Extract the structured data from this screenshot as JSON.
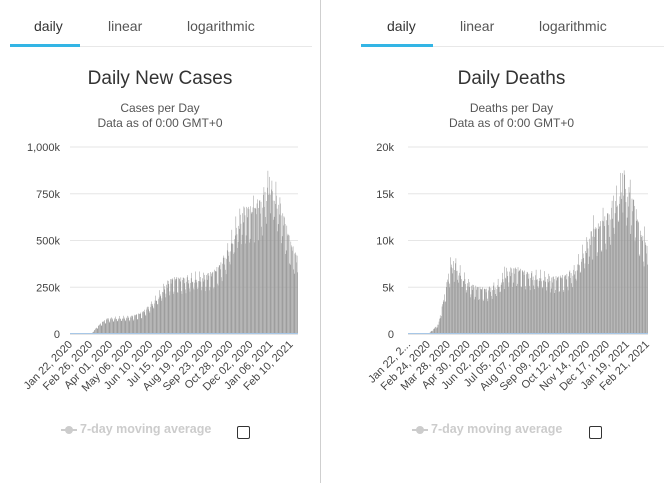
{
  "tabs": [
    "daily",
    "linear",
    "logarithmic"
  ],
  "legend_label": "7-day moving average",
  "bar_color": "#999999",
  "accent_color": "#33b5e5",
  "chart_data": [
    {
      "type": "bar",
      "title": "Daily New Cases",
      "subtitle": "Cases per Day",
      "subtitle2": "Data as of 0:00 GMT+0",
      "x_start": "Jan 22, 2020",
      "x_end": "Feb 22, 2021",
      "x_tick_labels": [
        "Jan 22, 2020",
        "Feb 26, 2020",
        "Apr 01, 2020",
        "May 06, 2020",
        "Jun 10, 2020",
        "Jul 15, 2020",
        "Aug 19, 2020",
        "Sep 23, 2020",
        "Oct 28, 2020",
        "Dec 02, 2020",
        "Jan 06, 2021",
        "Feb 10, 2021"
      ],
      "y_ticks": [
        0,
        250000,
        500000,
        750000,
        1000000
      ],
      "y_tick_labels": [
        "0",
        "250k",
        "500k",
        "750k",
        "1,000k"
      ],
      "ylim": [
        0,
        1000000
      ],
      "anchors": [
        [
          0,
          500
        ],
        [
          30,
          2000
        ],
        [
          38,
          5000
        ],
        [
          45,
          30000
        ],
        [
          55,
          60000
        ],
        [
          65,
          80000
        ],
        [
          75,
          82000
        ],
        [
          90,
          85000
        ],
        [
          105,
          90000
        ],
        [
          125,
          110000
        ],
        [
          140,
          150000
        ],
        [
          155,
          200000
        ],
        [
          165,
          250000
        ],
        [
          175,
          280000
        ],
        [
          185,
          290000
        ],
        [
          195,
          285000
        ],
        [
          215,
          290000
        ],
        [
          235,
          300000
        ],
        [
          250,
          320000
        ],
        [
          260,
          350000
        ],
        [
          270,
          400000
        ],
        [
          280,
          470000
        ],
        [
          290,
          560000
        ],
        [
          300,
          630000
        ],
        [
          310,
          650000
        ],
        [
          320,
          640000
        ],
        [
          335,
          690000
        ],
        [
          345,
          770000
        ],
        [
          350,
          790000
        ],
        [
          355,
          750000
        ],
        [
          365,
          680000
        ],
        [
          375,
          580000
        ],
        [
          385,
          470000
        ],
        [
          395,
          400000
        ]
      ],
      "spikes": [
        [
          348,
          840000
        ],
        [
          352,
          820000
        ],
        [
          327,
          720000
        ],
        [
          320,
          740000
        ],
        [
          340,
          760000
        ]
      ]
    },
    {
      "type": "bar",
      "title": "Daily Deaths",
      "subtitle": "Deaths per Day",
      "subtitle2": "Data as of 0:00 GMT+0",
      "x_start": "Jan 22, 2020",
      "x_end": "Feb 22, 2021",
      "x_tick_labels": [
        "Jan 22, 2...",
        "Feb 24, 2020",
        "Mar 28, 2020",
        "Apr 30, 2020",
        "Jun 02, 2020",
        "Jul 05, 2020",
        "Aug 07, 2020",
        "Sep 09, 2020",
        "Oct 12, 2020",
        "Nov 14, 2020",
        "Dec 17, 2020",
        "Jan 19, 2021",
        "Feb 21, 2021"
      ],
      "y_ticks": [
        0,
        5000,
        10000,
        15000,
        20000
      ],
      "y_tick_labels": [
        "0",
        "5k",
        "10k",
        "15k",
        "20k"
      ],
      "ylim": [
        0,
        20000
      ],
      "anchors": [
        [
          0,
          20
        ],
        [
          35,
          100
        ],
        [
          50,
          1000
        ],
        [
          60,
          4000
        ],
        [
          68,
          6500
        ],
        [
          78,
          7300
        ],
        [
          90,
          6000
        ],
        [
          105,
          5000
        ],
        [
          130,
          4600
        ],
        [
          150,
          5200
        ],
        [
          165,
          6500
        ],
        [
          180,
          6800
        ],
        [
          200,
          6200
        ],
        [
          220,
          6000
        ],
        [
          240,
          5800
        ],
        [
          260,
          6000
        ],
        [
          275,
          6600
        ],
        [
          290,
          8500
        ],
        [
          305,
          10500
        ],
        [
          320,
          11500
        ],
        [
          335,
          12500
        ],
        [
          345,
          14000
        ],
        [
          355,
          15500
        ],
        [
          365,
          14500
        ],
        [
          375,
          13500
        ],
        [
          385,
          10500
        ],
        [
          395,
          9000
        ]
      ],
      "spikes": [
        [
          70,
          8200
        ],
        [
          75,
          7800
        ],
        [
          160,
          7200
        ],
        [
          307,
          12700
        ],
        [
          323,
          13500
        ],
        [
          340,
          14800
        ],
        [
          355,
          17200
        ],
        [
          358,
          17500
        ],
        [
          368,
          16500
        ],
        [
          392,
          11500
        ]
      ]
    }
  ]
}
